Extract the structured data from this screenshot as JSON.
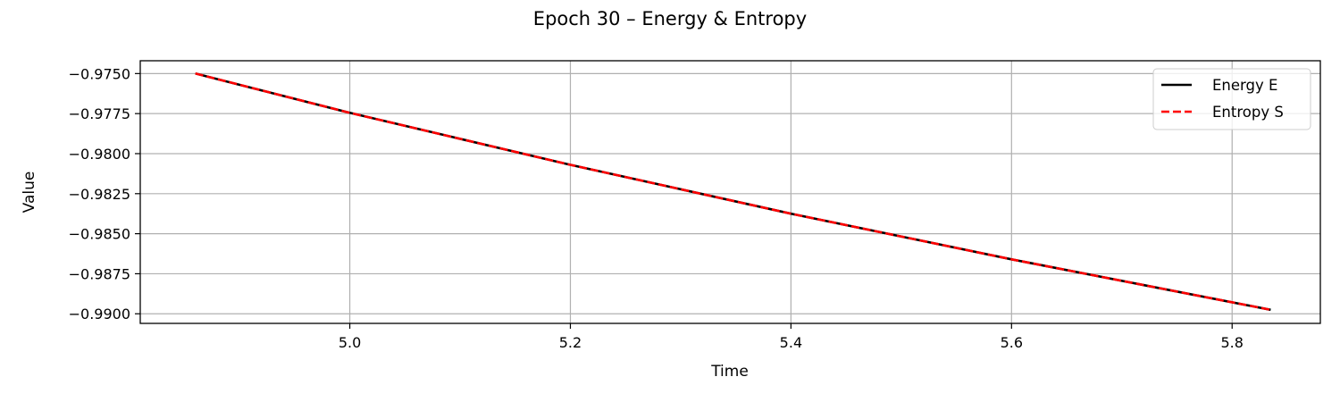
{
  "chart_data": {
    "type": "line",
    "title": "Epoch 30 – Energy & Entropy",
    "xlabel": "Time",
    "ylabel": "Value",
    "xlim": [
      4.81,
      5.88
    ],
    "ylim": [
      -0.9906,
      -0.9742
    ],
    "xticks": [
      5.0,
      5.2,
      5.4,
      5.6,
      5.8
    ],
    "xtick_labels": [
      "5.0",
      "5.2",
      "5.4",
      "5.6",
      "5.8"
    ],
    "yticks": [
      -0.975,
      -0.9775,
      -0.98,
      -0.9825,
      -0.985,
      -0.9875,
      -0.99
    ],
    "ytick_labels": [
      "−0.9750",
      "−0.9775",
      "−0.9800",
      "−0.9825",
      "−0.9850",
      "−0.9875",
      "−0.9900"
    ],
    "grid": true,
    "legend_position": "top-right",
    "series": [
      {
        "name": "Energy E",
        "color": "#000000",
        "style": "solid",
        "x": [
          4.86,
          5.0,
          5.2,
          5.4,
          5.6,
          5.835
        ],
        "y": [
          -0.975,
          -0.97745,
          -0.9807,
          -0.98375,
          -0.9866,
          -0.98975
        ]
      },
      {
        "name": "Entropy S",
        "color": "#ff0000",
        "style": "dashed",
        "x": [
          4.86,
          5.0,
          5.2,
          5.4,
          5.6,
          5.835
        ],
        "y": [
          -0.975,
          -0.97745,
          -0.9807,
          -0.98375,
          -0.9866,
          -0.98975
        ]
      }
    ]
  }
}
